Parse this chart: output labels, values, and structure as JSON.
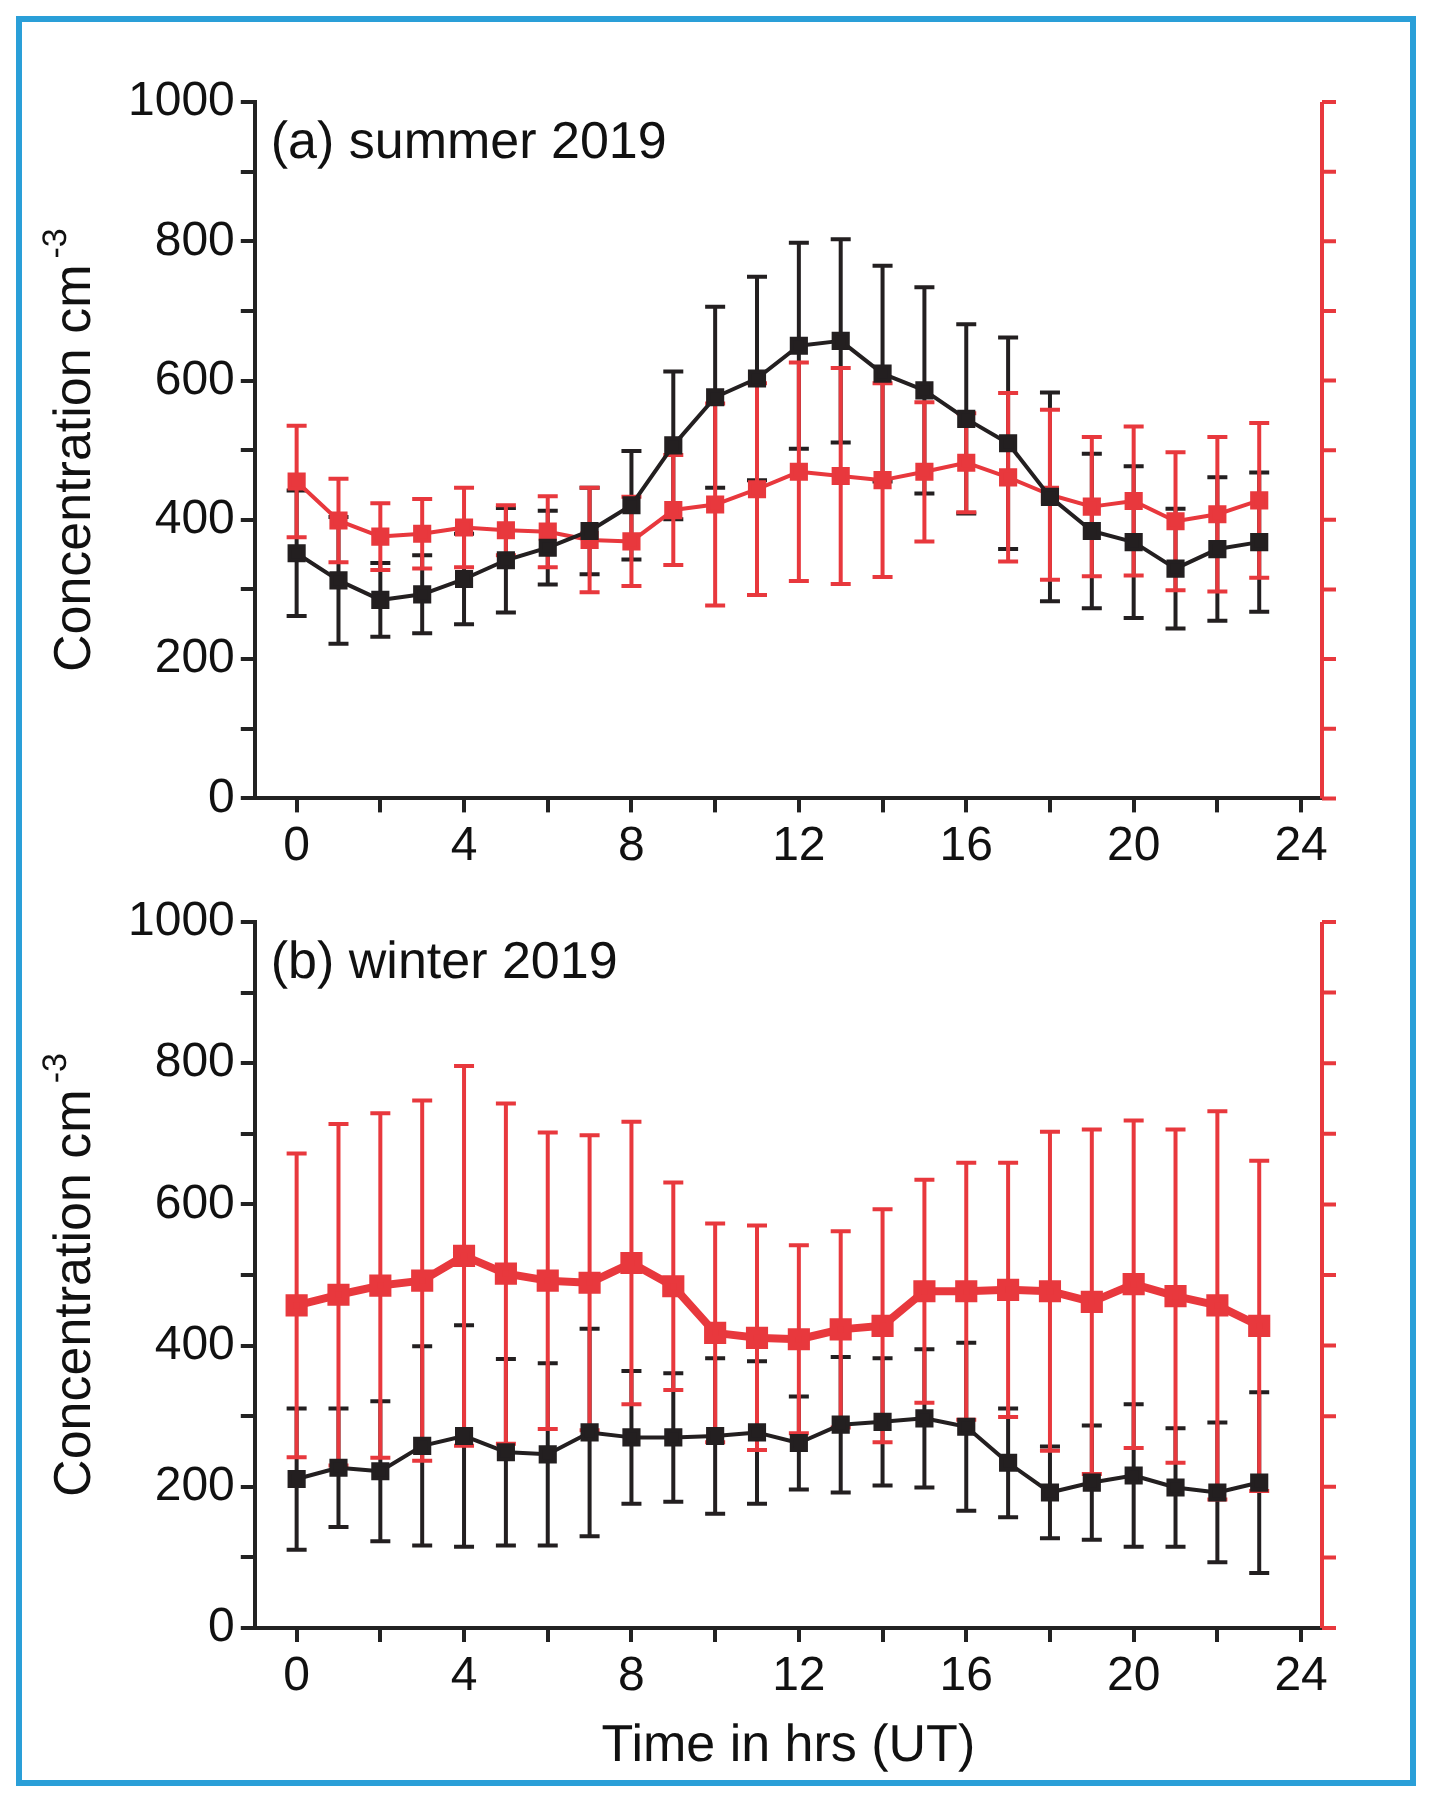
{
  "chart_data": [
    {
      "type": "line",
      "title": "(a) summer 2019",
      "ylabel": "Concentration cm$^{-3}$",
      "marker": "square",
      "line_style": "solid",
      "x": [
        0,
        1,
        2,
        3,
        4,
        5,
        6,
        7,
        8,
        9,
        10,
        11,
        12,
        13,
        14,
        15,
        16,
        17,
        18,
        19,
        20,
        21,
        22,
        23
      ],
      "series": [
        {
          "color": "#231f20",
          "values": [
            352,
            313,
            285,
            293,
            315,
            342,
            360,
            384,
            421,
            507,
            576,
            603,
            650,
            657,
            610,
            586,
            545,
            510,
            433,
            384,
            368,
            330,
            358,
            368
          ],
          "errors": [
            90,
            91,
            53,
            56,
            65,
            75,
            53,
            62,
            78,
            106,
            130,
            146,
            148,
            146,
            155,
            148,
            136,
            152,
            150,
            111,
            109,
            86,
            103,
            100
          ]
        },
        {
          "color": "#e8383d",
          "values": [
            455,
            399,
            376,
            380,
            389,
            385,
            383,
            371,
            369,
            414,
            422,
            444,
            469,
            463,
            457,
            469,
            482,
            461,
            436,
            419,
            427,
            398,
            408,
            428
          ],
          "errors": [
            80,
            60,
            48,
            50,
            57,
            36,
            51,
            75,
            64,
            79,
            145,
            152,
            157,
            155,
            139,
            100,
            71,
            121,
            122,
            100,
            107,
            99,
            111,
            111
          ]
        }
      ],
      "xlim": [
        -1,
        24.5
      ],
      "xticks": [
        0,
        {
          "value": 2,
          "label": null
        },
        4,
        {
          "value": 6,
          "label": null
        },
        8,
        {
          "value": 10,
          "label": null
        },
        12,
        {
          "value": 14,
          "label": null
        },
        16,
        {
          "value": 18,
          "label": null
        },
        20,
        {
          "value": 22,
          "label": null
        },
        24
      ],
      "ylim": [
        0,
        1000
      ],
      "yticks": [
        0,
        {
          "value": 100,
          "label": null
        },
        200,
        {
          "value": 300,
          "label": null
        },
        400,
        {
          "value": 500,
          "label": null
        },
        600,
        {
          "value": 700,
          "label": null
        },
        800,
        {
          "value": 900,
          "label": null
        },
        1000
      ],
      "legend": false
    },
    {
      "type": "line",
      "title": "(b) winter 2019",
      "ylabel": "Concentration cm$^{-3}$",
      "xlabel": "Time in hrs (UT)",
      "marker": "square",
      "line_style": "solid",
      "x": [
        0,
        1,
        2,
        3,
        4,
        5,
        6,
        7,
        8,
        9,
        10,
        11,
        12,
        13,
        14,
        15,
        16,
        17,
        18,
        19,
        20,
        21,
        22,
        23
      ],
      "series": [
        {
          "color": "#231f20",
          "values": [
            211,
            227,
            222,
            258,
            272,
            249,
            246,
            277,
            270,
            270,
            272,
            277,
            262,
            288,
            292,
            297,
            285,
            234,
            192,
            206,
            216,
            199,
            192,
            206
          ],
          "errors": [
            100,
            84,
            99,
            141,
            157,
            132,
            129,
            147,
            94,
            91,
            110,
            101,
            66,
            96,
            90,
            98,
            119,
            77,
            65,
            81,
            101,
            84,
            99,
            128
          ]
        },
        {
          "color": "#e8383d",
          "values": [
            457,
            472,
            485,
            492,
            527,
            502,
            492,
            489,
            517,
            484,
            418,
            411,
            409,
            423,
            428,
            477,
            477,
            479,
            477,
            462,
            487,
            470,
            457,
            428
          ],
          "errors": [
            215,
            242,
            244,
            255,
            269,
            241,
            210,
            209,
            200,
            147,
            155,
            159,
            133,
            139,
            165,
            158,
            182,
            180,
            226,
            244,
            232,
            236,
            275,
            234
          ]
        }
      ],
      "xlim": [
        -1,
        24.5
      ],
      "xticks": [
        0,
        {
          "value": 2,
          "label": null
        },
        4,
        {
          "value": 6,
          "label": null
        },
        8,
        {
          "value": 10,
          "label": null
        },
        12,
        {
          "value": 14,
          "label": null
        },
        16,
        {
          "value": 18,
          "label": null
        },
        20,
        {
          "value": 22,
          "label": null
        },
        24
      ],
      "ylim": [
        0,
        1000
      ],
      "yticks": [
        0,
        {
          "value": 100,
          "label": null
        },
        200,
        {
          "value": 300,
          "label": null
        },
        400,
        {
          "value": 500,
          "label": null
        },
        600,
        {
          "value": 700,
          "label": null
        },
        800,
        {
          "value": 900,
          "label": null
        },
        1000
      ],
      "legend": false
    }
  ]
}
